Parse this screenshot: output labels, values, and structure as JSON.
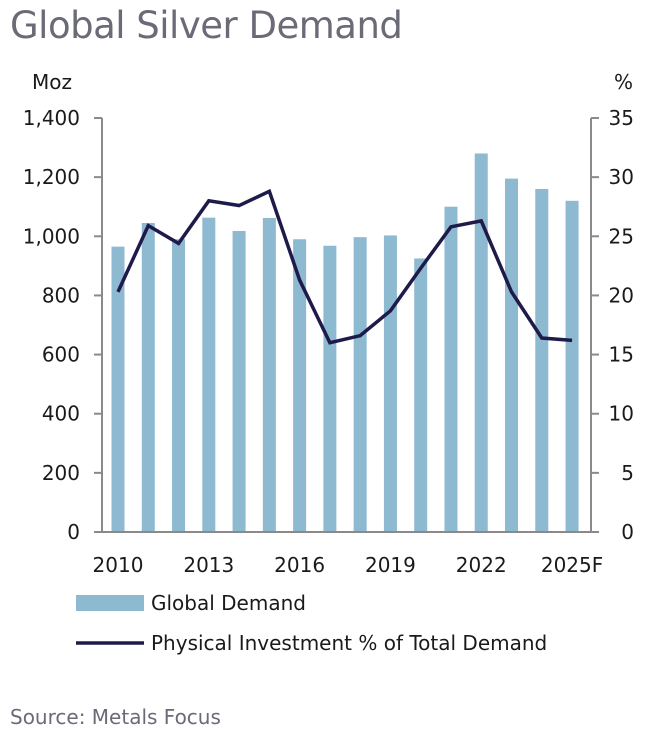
{
  "chart_data": {
    "type": "bar",
    "title": "Global Silver Demand",
    "source": "Source: Metals Focus",
    "left_axis": {
      "unit": "Moz",
      "min": 0,
      "max": 1400,
      "ticks": [
        0,
        200,
        400,
        600,
        800,
        1000,
        1200,
        1400
      ],
      "tick_labels": [
        "0",
        "200",
        "400",
        "600",
        "800",
        "1,000",
        "1,200",
        "1,400"
      ]
    },
    "right_axis": {
      "unit": "%",
      "min": 0,
      "max": 35,
      "ticks": [
        0,
        5,
        10,
        15,
        20,
        25,
        30,
        35
      ],
      "tick_labels": [
        "0",
        "5",
        "10",
        "15",
        "20",
        "25",
        "30",
        "35"
      ]
    },
    "categories": [
      "2010",
      "2011",
      "2012",
      "2013",
      "2014",
      "2015",
      "2016",
      "2017",
      "2018",
      "2019",
      "2020",
      "2021",
      "2022",
      "2023",
      "2024",
      "2025F"
    ],
    "x_tick_labels": [
      "2010",
      "2013",
      "2016",
      "2019",
      "2022",
      "2025F"
    ],
    "series": [
      {
        "name": "Global Demand",
        "type": "bar",
        "axis": "left",
        "color": "#8db9d1",
        "values": [
          965,
          1045,
          990,
          1063,
          1018,
          1062,
          990,
          968,
          997,
          1003,
          925,
          1100,
          1280,
          1195,
          1160,
          1120
        ]
      },
      {
        "name": "Physical Investment % of Total Demand",
        "type": "line",
        "axis": "right",
        "color": "#1e1b4b",
        "values": [
          20.3,
          25.9,
          24.4,
          28.0,
          27.6,
          28.8,
          21.3,
          16.0,
          16.6,
          18.7,
          22.3,
          25.8,
          26.3,
          20.3,
          16.4,
          16.2
        ]
      }
    ],
    "legend": [
      {
        "label": "Global Demand",
        "symbol": "bar",
        "color": "#8db9d1"
      },
      {
        "label": "Physical Investment % of Total Demand",
        "symbol": "line",
        "color": "#1e1b4b"
      }
    ]
  }
}
